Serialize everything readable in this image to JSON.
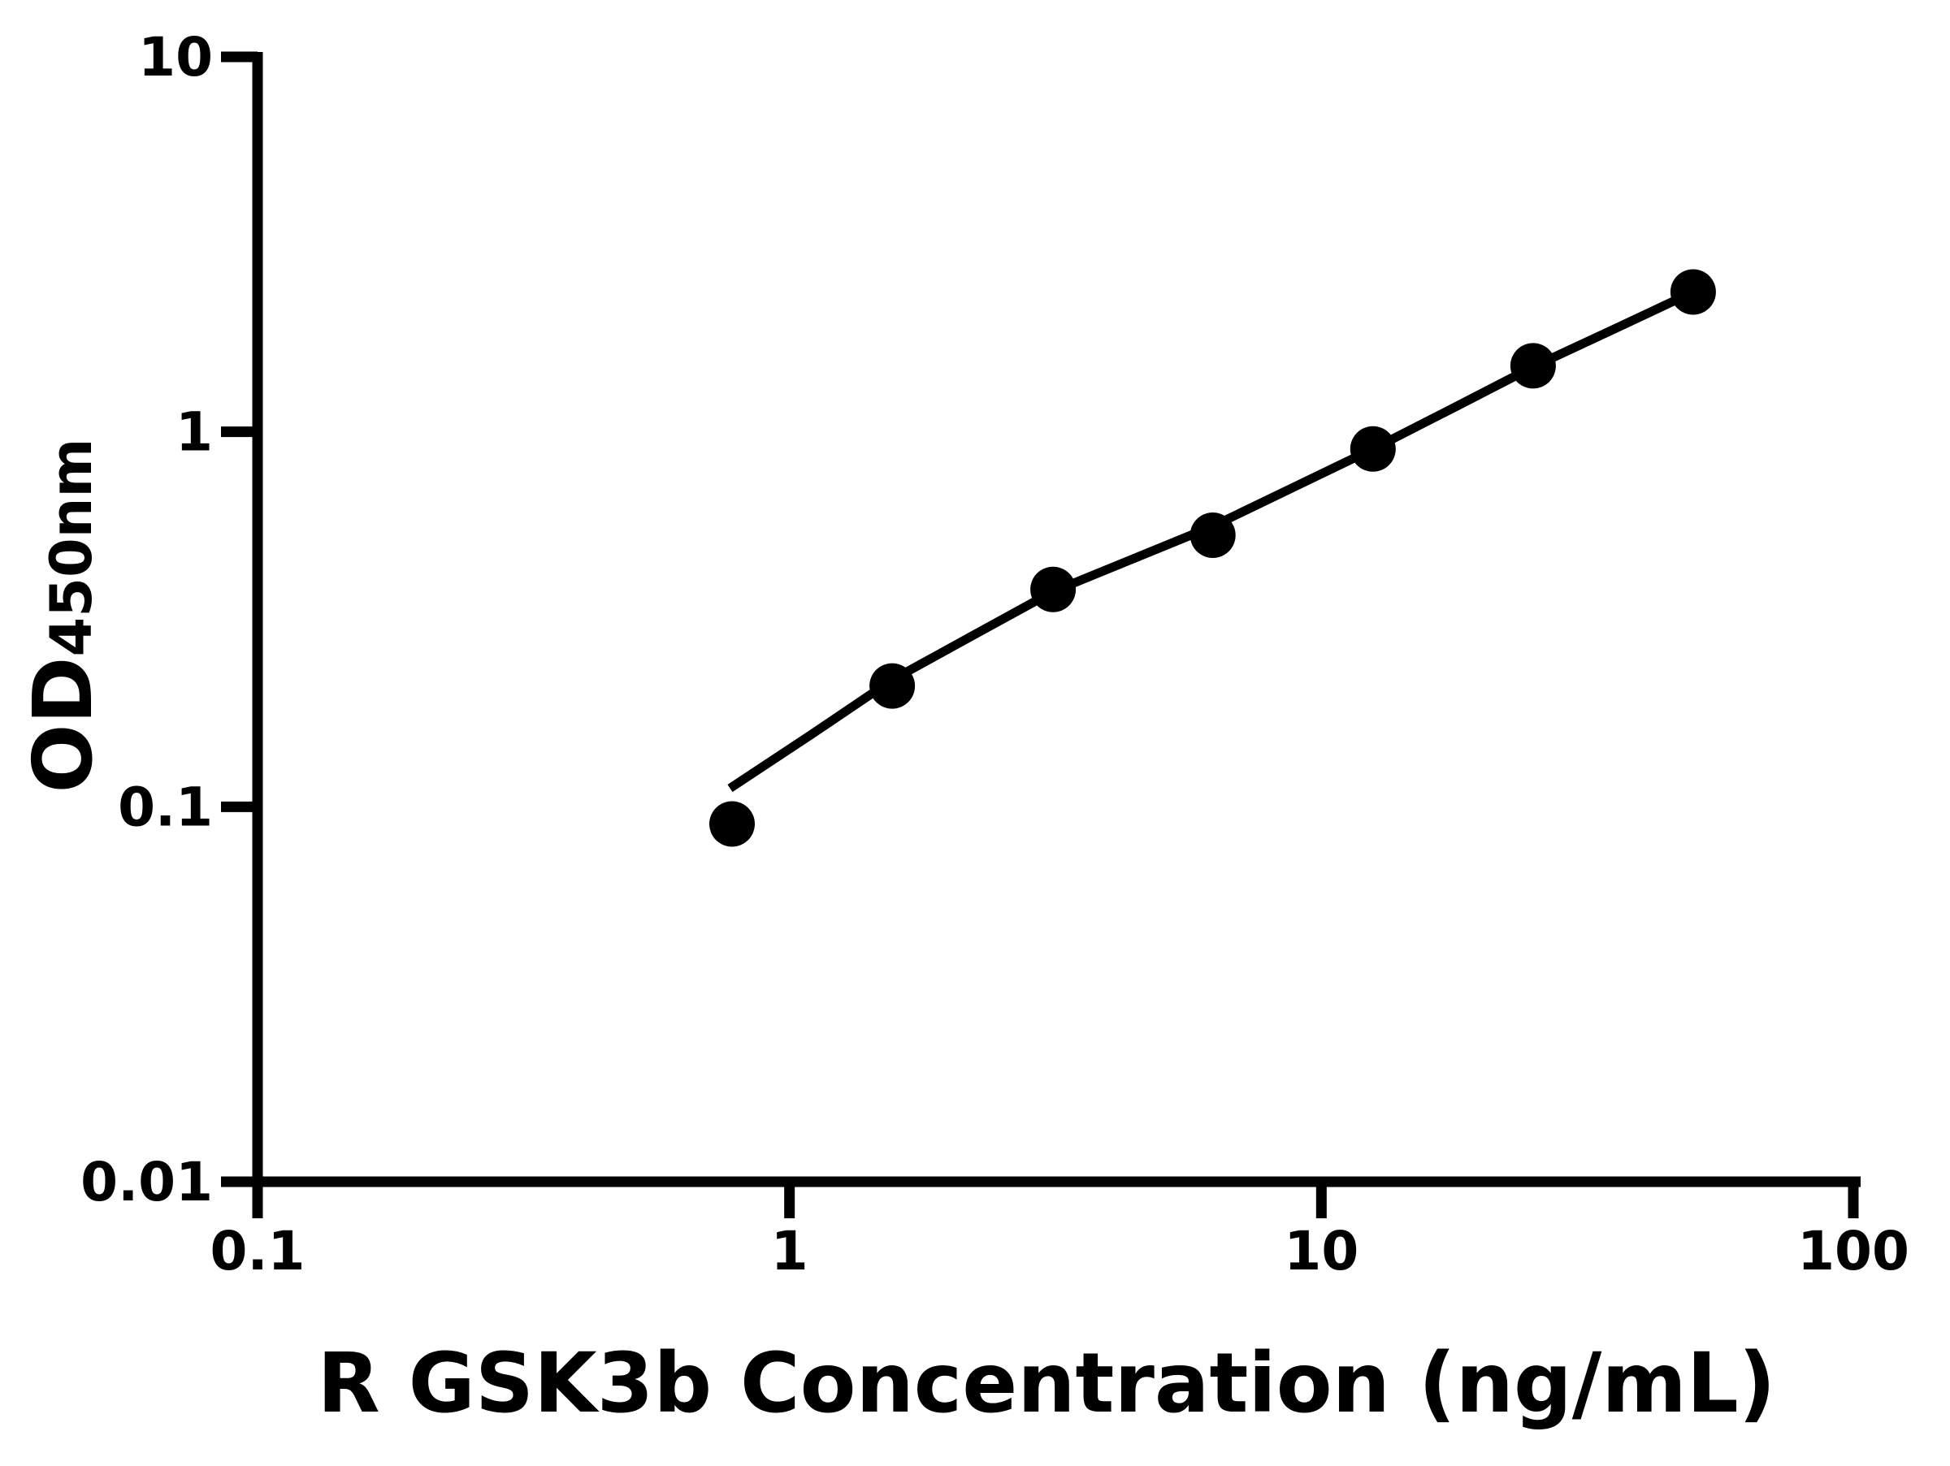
{
  "page": {
    "background_color": "#ffffff",
    "foreground_color": "#000000"
  },
  "chart_data": {
    "type": "scatter",
    "title": "",
    "xlabel": "R GSK3b Concentration (ng/mL)",
    "ylabel": "OD450nm",
    "ylabel_base": "OD",
    "ylabel_sub": "450nm",
    "x_scale": "log",
    "y_scale": "log",
    "xlim": [
      0.1,
      100
    ],
    "ylim": [
      0.01,
      10
    ],
    "grid": "off",
    "legend": "none",
    "x_ticks": [
      {
        "value": 0.1,
        "label": "0.1"
      },
      {
        "value": 1,
        "label": "1"
      },
      {
        "value": 10,
        "label": "10"
      },
      {
        "value": 100,
        "label": "100"
      }
    ],
    "y_ticks": [
      {
        "value": 10,
        "label": "10"
      },
      {
        "value": 1,
        "label": "1"
      },
      {
        "value": 0.1,
        "label": "0.1"
      },
      {
        "value": 0.01,
        "label": "0.01"
      }
    ],
    "series": [
      {
        "name": "standard-curve-points",
        "type": "scatter",
        "marker": "circle",
        "color": "#000000",
        "points": [
          {
            "x": 0.78,
            "y": 0.09
          },
          {
            "x": 1.56,
            "y": 0.21
          },
          {
            "x": 3.13,
            "y": 0.38
          },
          {
            "x": 6.25,
            "y": 0.53
          },
          {
            "x": 12.5,
            "y": 0.9
          },
          {
            "x": 25,
            "y": 1.5
          },
          {
            "x": 50,
            "y": 2.36
          }
        ]
      }
    ],
    "fit_line": {
      "name": "fitted-standard-curve",
      "color": "#000000",
      "points": [
        {
          "x": 0.773,
          "y": 0.112
        },
        {
          "x": 1.1,
          "y": 0.156
        },
        {
          "x": 1.56,
          "y": 0.218
        },
        {
          "x": 2.21,
          "y": 0.286
        },
        {
          "x": 3.13,
          "y": 0.375
        },
        {
          "x": 4.42,
          "y": 0.458
        },
        {
          "x": 6.25,
          "y": 0.56
        },
        {
          "x": 8.84,
          "y": 0.71
        },
        {
          "x": 12.5,
          "y": 0.9
        },
        {
          "x": 17.7,
          "y": 1.158
        },
        {
          "x": 25,
          "y": 1.49
        },
        {
          "x": 35.4,
          "y": 1.875
        },
        {
          "x": 50,
          "y": 2.36
        }
      ]
    }
  }
}
